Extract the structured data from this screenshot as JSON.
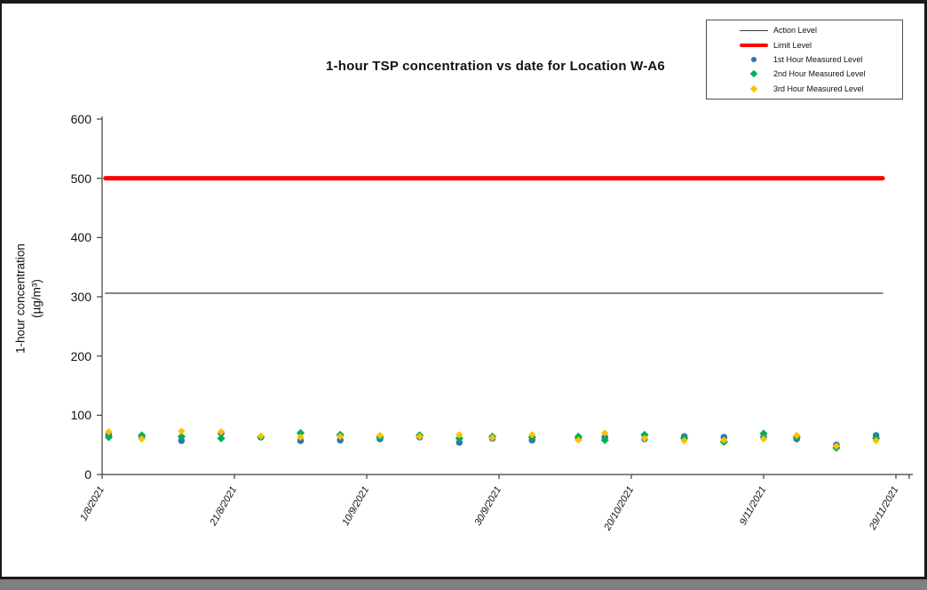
{
  "window": {
    "background": "#ffffff",
    "frame_color": "#1a1a1a",
    "bottom_shadow_color": "#808080"
  },
  "chart_data": {
    "type": "scatter",
    "title": "1-hour TSP concentration vs date for Location  W-A6",
    "ylabel": "1-hour concentration (µg/m³)",
    "ylabel_line1": "1-hour concentration",
    "ylabel_line2": "(µg/m³)",
    "xlabel": "",
    "ylim": [
      0,
      600
    ],
    "y_ticks": [
      0,
      100,
      200,
      300,
      400,
      500,
      600
    ],
    "x_tick_labels": [
      "1/8/2021",
      "21/8/2021",
      "10/9/2021",
      "30/9/2021",
      "20/10/2021",
      "9/11/2021",
      "29/11/2021"
    ],
    "x_tick_days": [
      0,
      20,
      40,
      60,
      80,
      100,
      120
    ],
    "x_end_tick_day": 122,
    "grid": false,
    "legend_position": "top-right",
    "reference_lines": [
      {
        "name": "Action Level",
        "value": 306,
        "color": "#3f3f3f",
        "width": 1.2
      },
      {
        "name": "Limit Level",
        "value": 500,
        "color": "#ff0000",
        "width": 5
      }
    ],
    "dates": [
      "2/8/2021",
      "7/8/2021",
      "13/8/2021",
      "19/8/2021",
      "25/8/2021",
      "31/8/2021",
      "6/9/2021",
      "12/9/2021",
      "18/9/2021",
      "24/9/2021",
      "29/9/2021",
      "5/10/2021",
      "12/10/2021",
      "16/10/2021",
      "22/10/2021",
      "28/10/2021",
      "3/11/2021",
      "9/11/2021",
      "14/11/2021",
      "20/11/2021",
      "26/11/2021"
    ],
    "days": [
      1,
      6,
      12,
      18,
      24,
      30,
      36,
      42,
      48,
      54,
      59,
      65,
      72,
      76,
      82,
      88,
      94,
      100,
      105,
      111,
      117
    ],
    "series": [
      {
        "name": "1st Hour Measured Level",
        "marker": "circle",
        "color": "#2e75b6",
        "values": [
          67,
          63,
          57,
          70,
          63,
          57,
          58,
          60,
          63,
          54,
          61,
          58,
          61,
          63,
          60,
          64,
          63,
          63,
          60,
          50,
          66
        ]
      },
      {
        "name": "2nd Hour Measured Level",
        "marker": "diamond",
        "color": "#00b050",
        "values": [
          63,
          66,
          64,
          61,
          64,
          70,
          67,
          63,
          66,
          61,
          64,
          63,
          64,
          58,
          67,
          61,
          55,
          69,
          63,
          45,
          61
        ]
      },
      {
        "name": "3rd Hour Measured Level",
        "marker": "diamond",
        "color": "#ffc000",
        "values": [
          72,
          60,
          73,
          72,
          65,
          63,
          64,
          66,
          64,
          67,
          62,
          67,
          58,
          70,
          61,
          57,
          58,
          60,
          66,
          48,
          57
        ]
      }
    ]
  },
  "legend": {
    "items": [
      {
        "label": "Action Level",
        "symbol": "line",
        "color": "#3f3f3f"
      },
      {
        "label": "Limit Level",
        "symbol": "line-thick",
        "color": "#ff0000"
      },
      {
        "label": "1st Hour Measured Level",
        "symbol": "circle",
        "color": "#2e75b6"
      },
      {
        "label": "2nd Hour Measured Level",
        "symbol": "diamond",
        "color": "#00b050"
      },
      {
        "label": "3rd Hour Measured Level",
        "symbol": "diamond",
        "color": "#ffc000"
      }
    ]
  }
}
